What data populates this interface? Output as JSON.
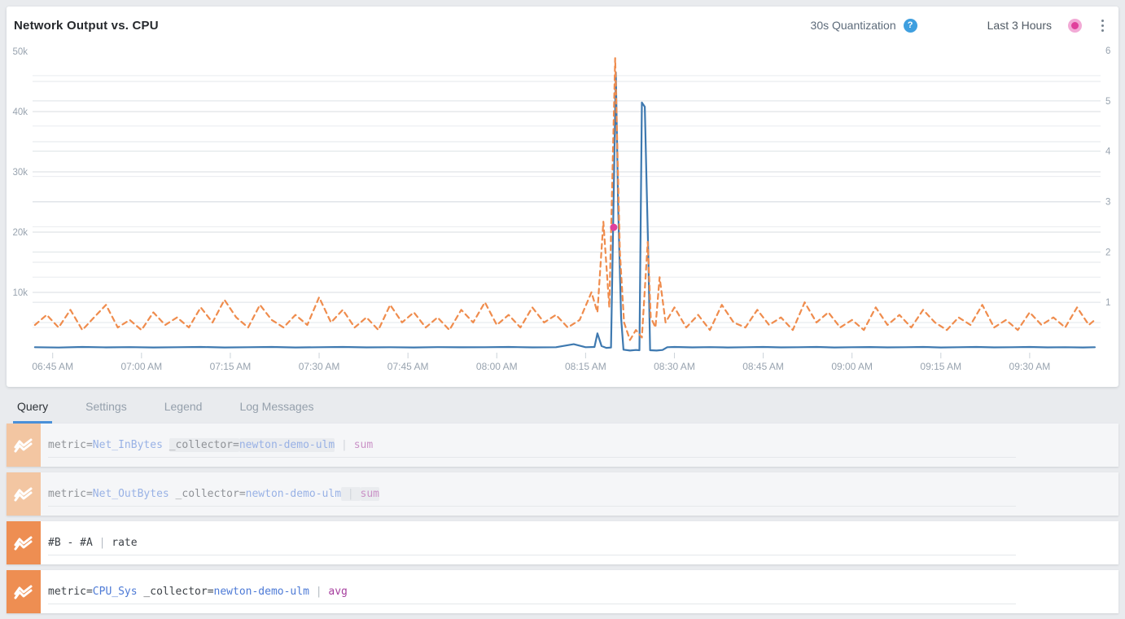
{
  "header": {
    "title": "Network Output vs. CPU",
    "quantization_label": "30s Quantization",
    "help_glyph": "?",
    "time_range_label": "Last 3 Hours",
    "live_dot_color": "#e0409c"
  },
  "chart_data": {
    "type": "line",
    "title": "Network Output vs. CPU",
    "grid": true,
    "legend": "none",
    "x_axis": {
      "start_minute": 2,
      "end_minute": 181,
      "base_time": "06:40 AM",
      "tick_minutes": [
        5,
        20,
        35,
        50,
        65,
        80,
        95,
        110,
        125,
        140,
        155,
        170
      ],
      "tick_labels": [
        "06:45 AM",
        "07:00 AM",
        "07:15 AM",
        "07:30 AM",
        "07:45 AM",
        "08:00 AM",
        "08:15 AM",
        "08:30 AM",
        "08:45 AM",
        "09:00 AM",
        "09:15 AM",
        "09:30 AM"
      ]
    },
    "left_axis": {
      "min": 0,
      "max": 50000,
      "minor_step": 5000,
      "tick_values": [
        10000,
        20000,
        30000,
        40000,
        50000
      ],
      "tick_labels": [
        "10k",
        "20k",
        "30k",
        "40k",
        "50k"
      ]
    },
    "right_axis": {
      "min": 0,
      "max": 6,
      "minor_step": 0.5,
      "tick_values": [
        1,
        2,
        3,
        4,
        5,
        6
      ],
      "tick_labels": [
        "1",
        "2",
        "3",
        "4",
        "5",
        "6"
      ]
    },
    "series": [
      {
        "name": "#B - #A | rate",
        "axis": "left",
        "color": "#3e79b0",
        "style": "solid",
        "points": [
          [
            2,
            900
          ],
          [
            6,
            850
          ],
          [
            10,
            950
          ],
          [
            14,
            880
          ],
          [
            18,
            920
          ],
          [
            22,
            860
          ],
          [
            26,
            900
          ],
          [
            30,
            950
          ],
          [
            34,
            870
          ],
          [
            38,
            900
          ],
          [
            42,
            940
          ],
          [
            46,
            870
          ],
          [
            50,
            900
          ],
          [
            54,
            950
          ],
          [
            58,
            880
          ],
          [
            62,
            900
          ],
          [
            66,
            860
          ],
          [
            70,
            920
          ],
          [
            74,
            890
          ],
          [
            78,
            900
          ],
          [
            82,
            940
          ],
          [
            86,
            880
          ],
          [
            90,
            900
          ],
          [
            93,
            1400
          ],
          [
            95,
            900
          ],
          [
            96.5,
            950
          ],
          [
            97,
            3200
          ],
          [
            97.7,
            1100
          ],
          [
            98.5,
            800
          ],
          [
            99.3,
            850
          ],
          [
            100.1,
            46500
          ],
          [
            100.5,
            24000
          ],
          [
            101,
            5800
          ],
          [
            101.4,
            500
          ],
          [
            102.5,
            350
          ],
          [
            103.5,
            450
          ],
          [
            104.1,
            400
          ],
          [
            104.5,
            41500
          ],
          [
            105,
            40800
          ],
          [
            105.3,
            28000
          ],
          [
            105.6,
            15800
          ],
          [
            105.9,
            400
          ],
          [
            107,
            350
          ],
          [
            108,
            450
          ],
          [
            108.8,
            900
          ],
          [
            110,
            950
          ],
          [
            113,
            880
          ],
          [
            116,
            920
          ],
          [
            119,
            870
          ],
          [
            122,
            900
          ],
          [
            125,
            940
          ],
          [
            128,
            880
          ],
          [
            131,
            900
          ],
          [
            134,
            950
          ],
          [
            137,
            870
          ],
          [
            140,
            900
          ],
          [
            143,
            930
          ],
          [
            146,
            880
          ],
          [
            149,
            900
          ],
          [
            152,
            950
          ],
          [
            155,
            870
          ],
          [
            158,
            900
          ],
          [
            161,
            940
          ],
          [
            164,
            880
          ],
          [
            167,
            900
          ],
          [
            170,
            950
          ],
          [
            173,
            880
          ],
          [
            176,
            900
          ],
          [
            179,
            870
          ],
          [
            181,
            900
          ]
        ]
      },
      {
        "name": "metric=CPU_Sys _collector=newton-demo-ulm | avg",
        "axis": "right",
        "color": "#ef8c4d",
        "style": "dashed",
        "points": [
          [
            2,
            0.55
          ],
          [
            4,
            0.75
          ],
          [
            6,
            0.5
          ],
          [
            8,
            0.85
          ],
          [
            10,
            0.45
          ],
          [
            12,
            0.7
          ],
          [
            14,
            0.95
          ],
          [
            16,
            0.5
          ],
          [
            18,
            0.65
          ],
          [
            20,
            0.45
          ],
          [
            22,
            0.8
          ],
          [
            24,
            0.55
          ],
          [
            26,
            0.7
          ],
          [
            28,
            0.5
          ],
          [
            30,
            0.9
          ],
          [
            32,
            0.6
          ],
          [
            34,
            1.05
          ],
          [
            36,
            0.7
          ],
          [
            38,
            0.5
          ],
          [
            40,
            0.95
          ],
          [
            42,
            0.65
          ],
          [
            44,
            0.5
          ],
          [
            46,
            0.75
          ],
          [
            48,
            0.55
          ],
          [
            50,
            1.1
          ],
          [
            52,
            0.6
          ],
          [
            54,
            0.85
          ],
          [
            56,
            0.5
          ],
          [
            58,
            0.7
          ],
          [
            60,
            0.45
          ],
          [
            62,
            0.95
          ],
          [
            64,
            0.6
          ],
          [
            66,
            0.8
          ],
          [
            68,
            0.5
          ],
          [
            70,
            0.7
          ],
          [
            72,
            0.45
          ],
          [
            74,
            0.85
          ],
          [
            76,
            0.6
          ],
          [
            78,
            1.0
          ],
          [
            80,
            0.55
          ],
          [
            82,
            0.75
          ],
          [
            84,
            0.5
          ],
          [
            86,
            0.9
          ],
          [
            88,
            0.6
          ],
          [
            90,
            0.75
          ],
          [
            92,
            0.5
          ],
          [
            94,
            0.65
          ],
          [
            96,
            1.2
          ],
          [
            97,
            0.8
          ],
          [
            98,
            2.6
          ],
          [
            99,
            0.9
          ],
          [
            100,
            5.85
          ],
          [
            100.8,
            2.0
          ],
          [
            101.5,
            0.6
          ],
          [
            102.5,
            0.25
          ],
          [
            103.5,
            0.45
          ],
          [
            104.5,
            0.3
          ],
          [
            105.5,
            2.2
          ],
          [
            106,
            0.7
          ],
          [
            106.8,
            0.5
          ],
          [
            107.5,
            1.5
          ],
          [
            108.5,
            0.6
          ],
          [
            110,
            0.9
          ],
          [
            112,
            0.5
          ],
          [
            114,
            0.75
          ],
          [
            116,
            0.45
          ],
          [
            118,
            0.95
          ],
          [
            120,
            0.6
          ],
          [
            122,
            0.5
          ],
          [
            124,
            0.85
          ],
          [
            126,
            0.55
          ],
          [
            128,
            0.7
          ],
          [
            130,
            0.45
          ],
          [
            132,
            1.0
          ],
          [
            134,
            0.6
          ],
          [
            136,
            0.8
          ],
          [
            138,
            0.5
          ],
          [
            140,
            0.65
          ],
          [
            142,
            0.45
          ],
          [
            144,
            0.9
          ],
          [
            146,
            0.55
          ],
          [
            148,
            0.75
          ],
          [
            150,
            0.5
          ],
          [
            152,
            0.85
          ],
          [
            154,
            0.6
          ],
          [
            156,
            0.45
          ],
          [
            158,
            0.7
          ],
          [
            160,
            0.55
          ],
          [
            162,
            0.95
          ],
          [
            164,
            0.5
          ],
          [
            166,
            0.65
          ],
          [
            168,
            0.45
          ],
          [
            170,
            0.8
          ],
          [
            172,
            0.55
          ],
          [
            174,
            0.7
          ],
          [
            176,
            0.5
          ],
          [
            178,
            0.9
          ],
          [
            180,
            0.55
          ],
          [
            181,
            0.65
          ]
        ]
      }
    ],
    "marker": {
      "minute": 99.75,
      "value": 20800,
      "axis": "left",
      "color": "#e0409c"
    }
  },
  "tabs": [
    {
      "label": "Query",
      "active": true
    },
    {
      "label": "Settings",
      "active": false
    },
    {
      "label": "Legend",
      "active": false
    },
    {
      "label": "Log Messages",
      "active": false
    }
  ],
  "queries": [
    {
      "id": "A",
      "enabled": false,
      "icon": "metrics-zigzag",
      "icon_bg": "#f3c6a2",
      "segments": [
        {
          "text": "metric=",
          "style": "plain"
        },
        {
          "text": "Net_InBytes",
          "style": "blue"
        },
        {
          "text": " ",
          "style": "plain"
        },
        {
          "text": "_collector=",
          "style": "plain",
          "highlight": true
        },
        {
          "text": "newton-demo-ulm",
          "style": "blue",
          "highlight": true
        },
        {
          "text": " | ",
          "style": "pipe"
        },
        {
          "text": "sum",
          "style": "op"
        }
      ]
    },
    {
      "id": "B",
      "enabled": false,
      "icon": "metrics-zigzag",
      "icon_bg": "#f3c6a2",
      "segments": [
        {
          "text": "metric=",
          "style": "plain"
        },
        {
          "text": "Net_OutBytes",
          "style": "blue"
        },
        {
          "text": " ",
          "style": "plain"
        },
        {
          "text": "_collector=",
          "style": "plain"
        },
        {
          "text": "newton-demo-ulm",
          "style": "blue"
        },
        {
          "text": " | ",
          "style": "pipe",
          "highlight": true
        },
        {
          "text": "sum",
          "style": "op",
          "highlight": true
        }
      ]
    },
    {
      "id": "C",
      "enabled": true,
      "icon": "metrics-zigzag",
      "icon_bg": "#ee8e52",
      "segments": [
        {
          "text": "#B - #A",
          "style": "plain"
        },
        {
          "text": " | ",
          "style": "pipe"
        },
        {
          "text": "rate",
          "style": "plain"
        }
      ]
    },
    {
      "id": "D",
      "enabled": true,
      "icon": "metrics-zigzag",
      "icon_bg": "#ee8e52",
      "segments": [
        {
          "text": "metric=",
          "style": "plain"
        },
        {
          "text": "CPU_Sys",
          "style": "blue"
        },
        {
          "text": " ",
          "style": "plain"
        },
        {
          "text": "_collector=",
          "style": "plain"
        },
        {
          "text": "newton-demo-ulm",
          "style": "blue"
        },
        {
          "text": " | ",
          "style": "pipe"
        },
        {
          "text": "avg",
          "style": "op"
        }
      ]
    }
  ]
}
